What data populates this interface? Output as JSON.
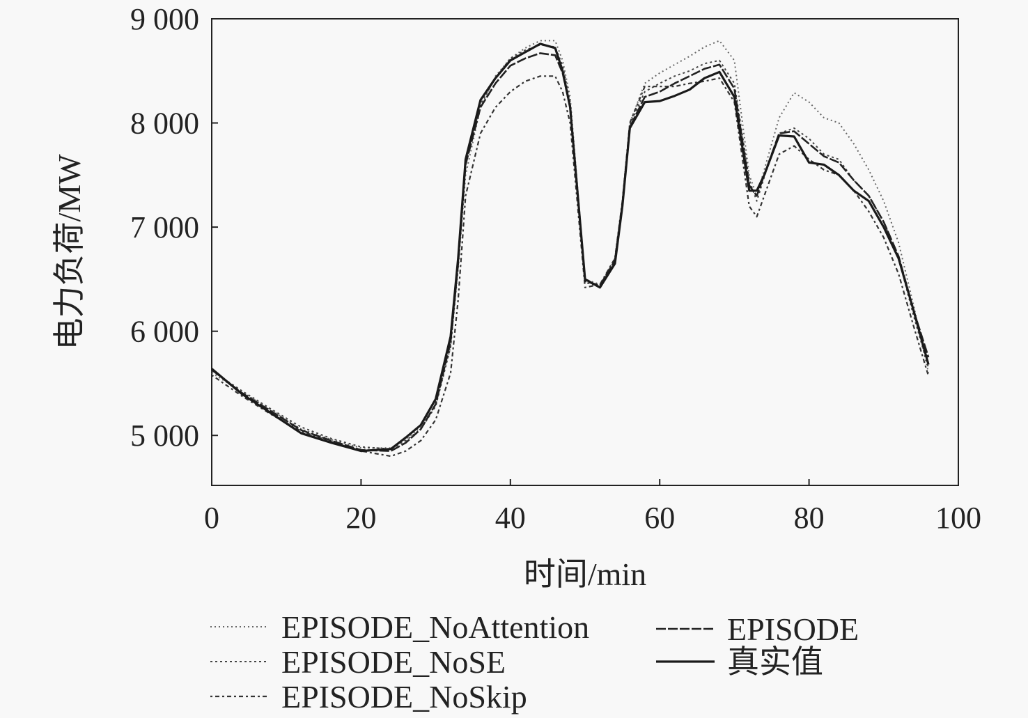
{
  "chart_data": {
    "type": "line",
    "title": "",
    "xlabel": "时间/min",
    "ylabel": "电力负荷/MW",
    "xlim": [
      0,
      100
    ],
    "ylim": [
      4520,
      9000
    ],
    "xticks": [
      0,
      20,
      40,
      60,
      80,
      100
    ],
    "xtick_labels": [
      "0",
      "20",
      "40",
      "60",
      "80",
      "100"
    ],
    "yticks": [
      5000,
      6000,
      7000,
      8000,
      9000
    ],
    "ytick_labels": [
      "5 000",
      "6 000",
      "7 000",
      "8 000",
      "9 000"
    ],
    "grid": false,
    "legend_position": "bottom",
    "x": [
      0,
      4,
      8,
      12,
      16,
      20,
      24,
      26,
      28,
      30,
      32,
      33,
      34,
      36,
      38,
      40,
      42,
      44,
      46,
      47,
      48,
      50,
      52,
      54,
      55,
      56,
      58,
      60,
      62,
      64,
      66,
      68,
      70,
      72,
      73,
      74,
      76,
      78,
      80,
      82,
      84,
      86,
      88,
      90,
      92,
      94,
      96
    ],
    "series": [
      {
        "name": "EPISODE_NoAttention",
        "style": "dotted-light",
        "values": [
          5600,
          5420,
          5240,
          5060,
          4960,
          4880,
          4880,
          4960,
          5080,
          5300,
          5850,
          6600,
          7500,
          8150,
          8450,
          8620,
          8720,
          8790,
          8790,
          8600,
          8250,
          6500,
          6450,
          6700,
          7250,
          8000,
          8380,
          8480,
          8560,
          8640,
          8730,
          8790,
          8600,
          7500,
          7300,
          7550,
          8050,
          8290,
          8200,
          8050,
          8000,
          7800,
          7550,
          7250,
          6850,
          6250,
          5600
        ]
      },
      {
        "name": "EPISODE_NoSE",
        "style": "dotted",
        "values": [
          5620,
          5430,
          5250,
          5080,
          4970,
          4890,
          4870,
          4950,
          5060,
          5280,
          5850,
          6650,
          7600,
          8180,
          8430,
          8620,
          8700,
          8750,
          8730,
          8550,
          8200,
          6470,
          6430,
          6680,
          7230,
          7980,
          8300,
          8380,
          8450,
          8500,
          8570,
          8600,
          8380,
          7450,
          7250,
          7480,
          7900,
          7950,
          7850,
          7700,
          7650,
          7450,
          7300,
          7050,
          6700,
          6150,
          5650
        ]
      },
      {
        "name": "EPISODE_NoSkip",
        "style": "dashdot",
        "values": [
          5580,
          5380,
          5200,
          5040,
          4940,
          4850,
          4800,
          4850,
          4950,
          5150,
          5600,
          6300,
          7300,
          7900,
          8150,
          8300,
          8400,
          8450,
          8450,
          8300,
          8000,
          6420,
          6450,
          6700,
          7250,
          8000,
          8350,
          8350,
          8350,
          8380,
          8400,
          8430,
          8200,
          7200,
          7100,
          7300,
          7700,
          7780,
          7650,
          7550,
          7500,
          7350,
          7150,
          6900,
          6550,
          6050,
          5570
        ]
      },
      {
        "name": "EPISODE",
        "style": "dashed-marker",
        "values": [
          5630,
          5410,
          5230,
          5050,
          4950,
          4860,
          4850,
          4930,
          5060,
          5300,
          5900,
          6650,
          7600,
          8150,
          8380,
          8550,
          8620,
          8670,
          8650,
          8480,
          8150,
          6480,
          6440,
          6680,
          7220,
          7960,
          8250,
          8300,
          8380,
          8450,
          8520,
          8560,
          8330,
          7400,
          7300,
          7500,
          7900,
          7920,
          7800,
          7680,
          7620,
          7450,
          7300,
          7050,
          6720,
          6200,
          5750
        ]
      },
      {
        "name": "真实值",
        "style": "solid",
        "values": [
          5640,
          5400,
          5210,
          5020,
          4930,
          4850,
          4870,
          4980,
          5100,
          5350,
          5950,
          6700,
          7650,
          8220,
          8430,
          8600,
          8680,
          8760,
          8720,
          8500,
          8150,
          6500,
          6420,
          6650,
          7200,
          7950,
          8200,
          8210,
          8260,
          8320,
          8430,
          8490,
          8250,
          7350,
          7350,
          7500,
          7880,
          7870,
          7620,
          7600,
          7500,
          7350,
          7250,
          7000,
          6700,
          6200,
          5680
        ]
      }
    ]
  }
}
